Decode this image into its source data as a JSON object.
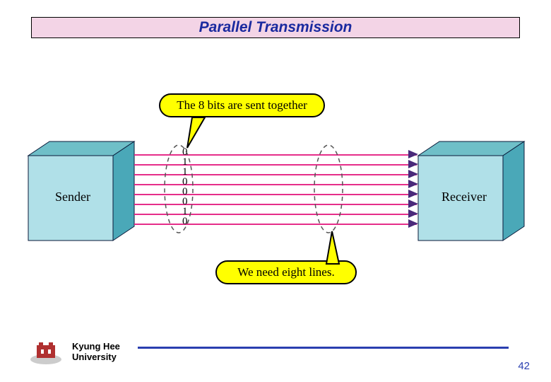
{
  "title": {
    "text": "Parallel Transmission",
    "color": "#1a2a9f",
    "background": "#f3d4e6"
  },
  "bubbles": {
    "top": {
      "text": "The 8 bits are sent together",
      "fill": "#ffff00"
    },
    "bottom": {
      "text": "We need eight lines.",
      "fill": "#ffff00"
    }
  },
  "boxes": {
    "sender": {
      "label": "Sender",
      "front_fill": "#b0e0e8",
      "side_fill": "#4aa8b8",
      "top_fill": "#6fbfc8",
      "border": "#0a1a3a"
    },
    "receiver": {
      "label": "Receiver",
      "front_fill": "#b0e0e8",
      "side_fill": "#4aa8b8",
      "top_fill": "#6fbfc8",
      "border": "#0a1a3a"
    }
  },
  "lines": {
    "count": 8,
    "color": "#e62e8a",
    "spacing": 14,
    "bits": [
      "0",
      "1",
      "1",
      "0",
      "0",
      "0",
      "1",
      "0"
    ],
    "arrow_color": "#4a2a7a"
  },
  "ellipses": {
    "stroke": "#555555"
  },
  "footer": {
    "institution_line1": "Kyung Hee",
    "institution_line2": "University",
    "page": "42",
    "line_color": "#2a3fb0",
    "page_color": "#2a3fb0"
  },
  "logo": {
    "colors": {
      "primary": "#b03030",
      "secondary": "#ffffff",
      "accent": "#888888"
    }
  }
}
